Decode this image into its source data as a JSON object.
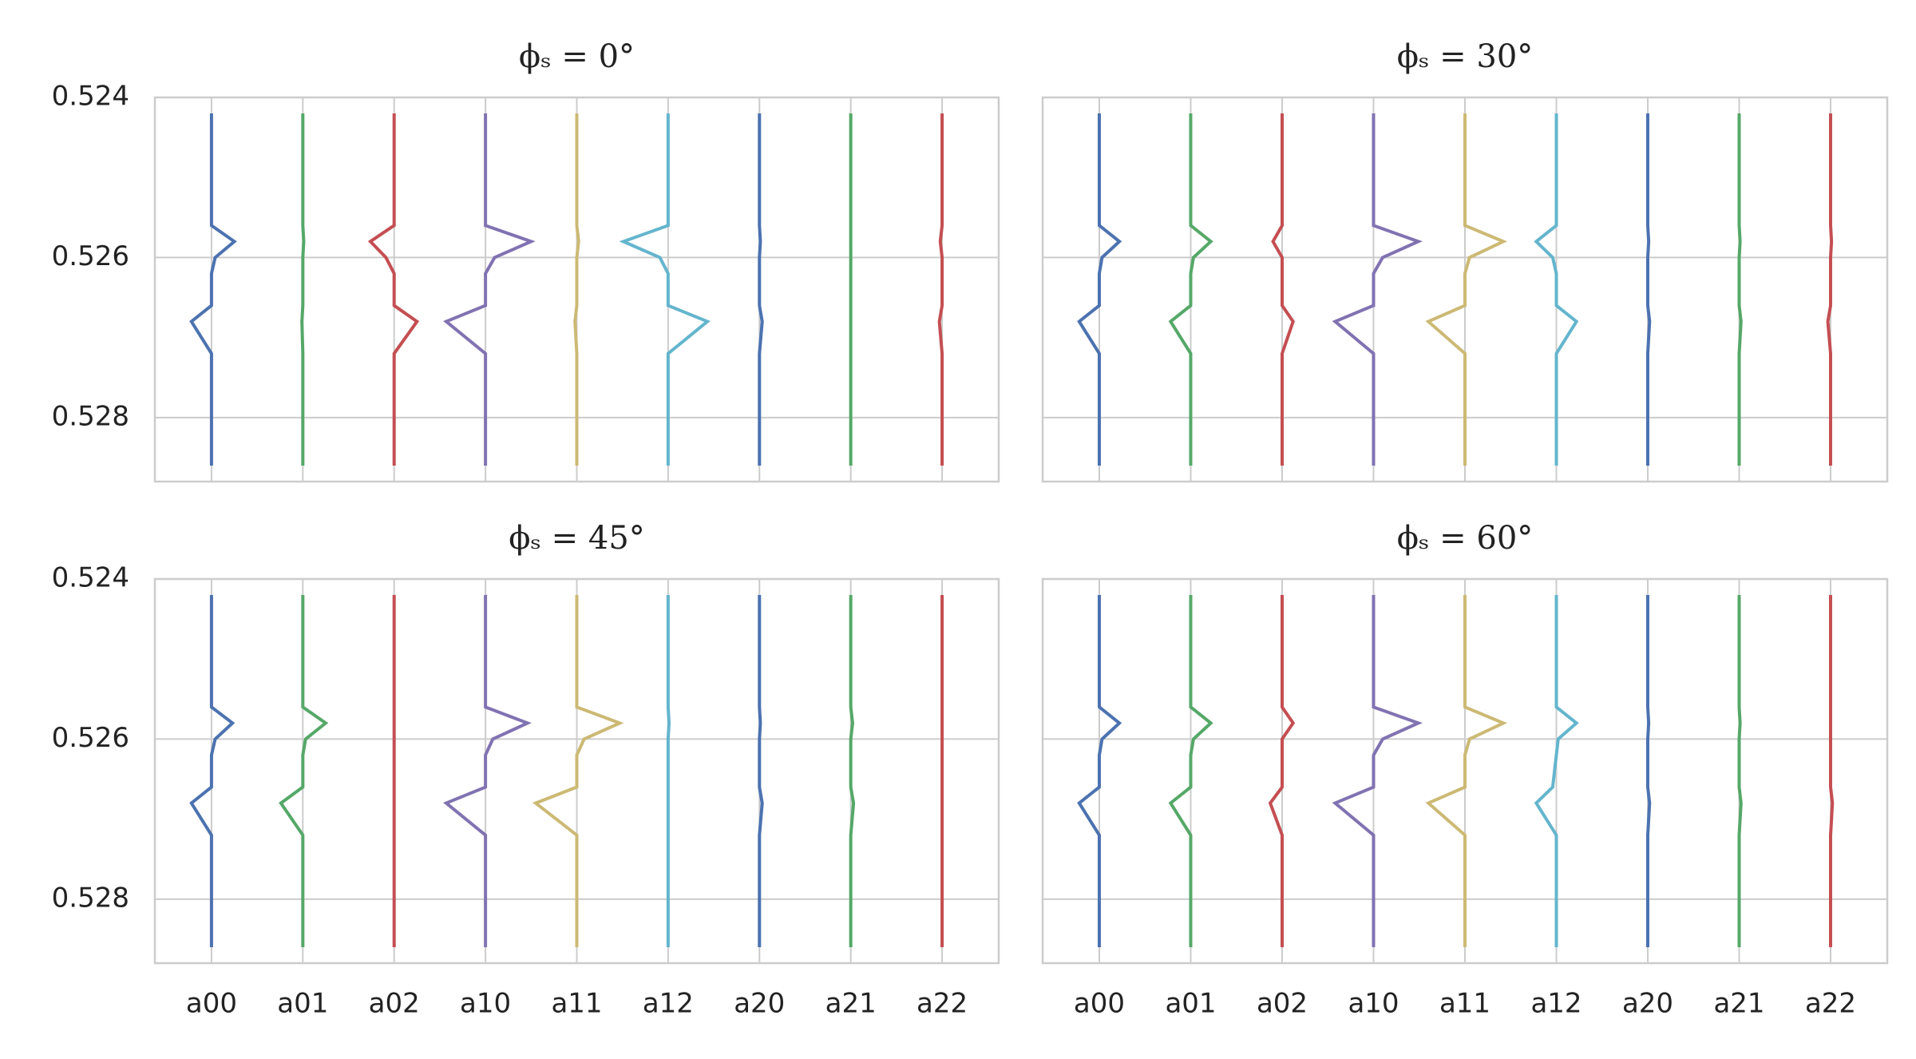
{
  "chart_data": [
    {
      "type": "profile",
      "title": "ϕₛ = 0°",
      "categories": [
        "a00",
        "a01",
        "a02",
        "a10",
        "a11",
        "a12",
        "a20",
        "a21",
        "a22"
      ],
      "levels": [
        0.5242,
        0.5256,
        0.5258,
        0.526,
        0.5262,
        0.5266,
        0.5268,
        0.5272,
        0.5286
      ],
      "ylim": [
        0.524,
        0.5288
      ],
      "y_inverted": true,
      "yticks": [
        0.524,
        0.526,
        0.528
      ],
      "grid": true,
      "ytick_labels": true,
      "xtick_labels": false,
      "series": [
        {
          "color": "#4c72b0",
          "values": [
            0,
            0,
            0.25,
            0.04,
            0,
            0,
            -0.22,
            0,
            0
          ]
        },
        {
          "color": "#55a868",
          "values": [
            0,
            0,
            0.01,
            0,
            0,
            0,
            -0.01,
            0,
            0
          ]
        },
        {
          "color": "#c44e52",
          "values": [
            0,
            0,
            -0.26,
            -0.09,
            0,
            0,
            0.25,
            0,
            0
          ]
        },
        {
          "color": "#8172b2",
          "values": [
            0,
            0,
            0.5,
            0.1,
            0,
            0,
            -0.43,
            0,
            0
          ]
        },
        {
          "color": "#ccb974",
          "values": [
            0,
            0,
            0.02,
            0,
            0,
            0,
            -0.02,
            0,
            0
          ]
        },
        {
          "color": "#64b5cd",
          "values": [
            0,
            0,
            -0.49,
            -0.09,
            0,
            0,
            0.43,
            0,
            0
          ]
        },
        {
          "color": "#4c72b0",
          "values": [
            0,
            0,
            0.01,
            0,
            0,
            0,
            0.03,
            0,
            0
          ]
        },
        {
          "color": "#55a868",
          "values": [
            0,
            0,
            0,
            0,
            0,
            0,
            0,
            0,
            0
          ]
        },
        {
          "color": "#c44e52",
          "values": [
            0,
            0,
            -0.02,
            0,
            0,
            0,
            -0.03,
            0,
            0
          ]
        }
      ]
    },
    {
      "type": "profile",
      "title": "ϕₛ = 30°",
      "categories": [
        "a00",
        "a01",
        "a02",
        "a10",
        "a11",
        "a12",
        "a20",
        "a21",
        "a22"
      ],
      "levels": [
        0.5242,
        0.5256,
        0.5258,
        0.526,
        0.5262,
        0.5266,
        0.5268,
        0.5272,
        0.5286
      ],
      "ylim": [
        0.524,
        0.5288
      ],
      "y_inverted": true,
      "yticks": [
        0.524,
        0.526,
        0.528
      ],
      "grid": true,
      "ytick_labels": false,
      "xtick_labels": false,
      "series": [
        {
          "color": "#4c72b0",
          "values": [
            0,
            0,
            0.22,
            0.03,
            0,
            0,
            -0.22,
            0,
            0
          ]
        },
        {
          "color": "#55a868",
          "values": [
            0,
            0,
            0.22,
            0.03,
            0,
            0,
            -0.22,
            0,
            0
          ]
        },
        {
          "color": "#c44e52",
          "values": [
            0,
            0,
            -0.1,
            0,
            0,
            0,
            0.12,
            0,
            0
          ]
        },
        {
          "color": "#8172b2",
          "values": [
            0,
            0,
            0.49,
            0.1,
            0,
            0,
            -0.42,
            0,
            0
          ]
        },
        {
          "color": "#ccb974",
          "values": [
            0,
            0,
            0.42,
            0.05,
            0,
            0,
            -0.4,
            0,
            0
          ]
        },
        {
          "color": "#64b5cd",
          "values": [
            0,
            0,
            -0.22,
            -0.04,
            0,
            0,
            0.22,
            0,
            0
          ]
        },
        {
          "color": "#4c72b0",
          "values": [
            0,
            0,
            0.01,
            0,
            0,
            0,
            0.02,
            0,
            0
          ]
        },
        {
          "color": "#55a868",
          "values": [
            0,
            0,
            0.01,
            0,
            0,
            0,
            0.02,
            0,
            0
          ]
        },
        {
          "color": "#c44e52",
          "values": [
            0,
            0,
            0.01,
            0,
            0,
            0,
            -0.03,
            0,
            0
          ]
        }
      ]
    },
    {
      "type": "profile",
      "title": "ϕₛ = 45°",
      "categories": [
        "a00",
        "a01",
        "a02",
        "a10",
        "a11",
        "a12",
        "a20",
        "a21",
        "a22"
      ],
      "levels": [
        0.5242,
        0.5256,
        0.5258,
        0.526,
        0.5262,
        0.5266,
        0.5268,
        0.5272,
        0.5286
      ],
      "ylim": [
        0.524,
        0.5288
      ],
      "y_inverted": true,
      "yticks": [
        0.524,
        0.526,
        0.528
      ],
      "grid": true,
      "ytick_labels": true,
      "xtick_labels": true,
      "series": [
        {
          "color": "#4c72b0",
          "values": [
            0,
            0,
            0.23,
            0.04,
            0,
            0,
            -0.22,
            0,
            0
          ]
        },
        {
          "color": "#55a868",
          "values": [
            0,
            0,
            0.25,
            0.03,
            0,
            0,
            -0.24,
            0,
            0
          ]
        },
        {
          "color": "#c44e52",
          "values": [
            0,
            0,
            0,
            0,
            0,
            0,
            0,
            0,
            0
          ]
        },
        {
          "color": "#8172b2",
          "values": [
            0,
            0,
            0.46,
            0.08,
            0,
            0,
            -0.43,
            0,
            0
          ]
        },
        {
          "color": "#ccb974",
          "values": [
            0,
            0,
            0.47,
            0.08,
            0,
            0,
            -0.45,
            0,
            0
          ]
        },
        {
          "color": "#64b5cd",
          "values": [
            0,
            0,
            0.01,
            0,
            0,
            0,
            0,
            0,
            0
          ]
        },
        {
          "color": "#4c72b0",
          "values": [
            0,
            0,
            0.01,
            0,
            0,
            0,
            0.03,
            0,
            0
          ]
        },
        {
          "color": "#55a868",
          "values": [
            0,
            0,
            0.02,
            0,
            0,
            0,
            0.03,
            0,
            0
          ]
        },
        {
          "color": "#c44e52",
          "values": [
            0,
            0,
            0,
            0,
            0,
            0,
            0,
            0,
            0
          ]
        }
      ]
    },
    {
      "type": "profile",
      "title": "ϕₛ = 60°",
      "categories": [
        "a00",
        "a01",
        "a02",
        "a10",
        "a11",
        "a12",
        "a20",
        "a21",
        "a22"
      ],
      "levels": [
        0.5242,
        0.5256,
        0.5258,
        0.526,
        0.5262,
        0.5266,
        0.5268,
        0.5272,
        0.5286
      ],
      "ylim": [
        0.524,
        0.5288
      ],
      "y_inverted": true,
      "yticks": [
        0.524,
        0.526,
        0.528
      ],
      "grid": true,
      "ytick_labels": false,
      "xtick_labels": true,
      "series": [
        {
          "color": "#4c72b0",
          "values": [
            0,
            0,
            0.22,
            0.03,
            0,
            0,
            -0.22,
            0,
            0
          ]
        },
        {
          "color": "#55a868",
          "values": [
            0,
            0,
            0.22,
            0.03,
            0,
            0,
            -0.22,
            0,
            0
          ]
        },
        {
          "color": "#c44e52",
          "values": [
            0,
            0,
            0.12,
            0,
            0,
            0,
            -0.13,
            0,
            0
          ]
        },
        {
          "color": "#8172b2",
          "values": [
            0,
            0,
            0.49,
            0.1,
            0,
            0,
            -0.42,
            0,
            0
          ]
        },
        {
          "color": "#ccb974",
          "values": [
            0,
            0,
            0.42,
            0.05,
            0,
            0,
            -0.4,
            0,
            0
          ]
        },
        {
          "color": "#64b5cd",
          "values": [
            0,
            0,
            0.22,
            0.02,
            0,
            -0.04,
            -0.22,
            0,
            0
          ]
        },
        {
          "color": "#4c72b0",
          "values": [
            0,
            0,
            0.01,
            0,
            0,
            0,
            0.02,
            0,
            0
          ]
        },
        {
          "color": "#55a868",
          "values": [
            0,
            0,
            0.01,
            0,
            0,
            0,
            0.02,
            0,
            0
          ]
        },
        {
          "color": "#c44e52",
          "values": [
            0,
            0,
            0,
            0,
            0,
            0,
            0.02,
            0,
            0
          ]
        }
      ]
    }
  ]
}
